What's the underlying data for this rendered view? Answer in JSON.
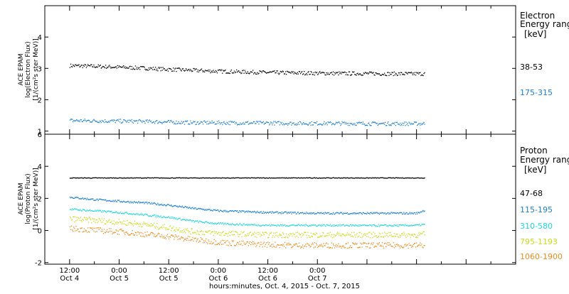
{
  "chart_data": [
    {
      "type": "scatter",
      "panel": "electron",
      "ylabel_lines": [
        "ACE EPAM",
        "log(Electron Flux)",
        "[1/(cm²s ster MeV)]"
      ],
      "ylim": [
        0.9,
        5.0
      ],
      "y_ticks": [
        1,
        2,
        3,
        4
      ],
      "legend_title_lines": [
        "Electron",
        "Energy ranges",
        "[keV]"
      ],
      "series": [
        {
          "name": "38-53",
          "color": "#000000",
          "x": [
            0,
            6,
            12,
            18,
            24,
            30,
            36,
            42,
            48,
            54,
            60,
            66,
            72,
            78,
            84,
            86
          ],
          "y": [
            3.1,
            3.08,
            3.05,
            3.02,
            2.98,
            2.95,
            2.92,
            2.9,
            2.88,
            2.87,
            2.86,
            2.85,
            2.85,
            2.84,
            2.84,
            2.84
          ]
        },
        {
          "name": "175-315",
          "color": "#1a7fd6",
          "x": [
            0,
            6,
            12,
            18,
            24,
            30,
            36,
            42,
            48,
            54,
            60,
            66,
            72,
            78,
            84,
            86
          ],
          "y": [
            1.35,
            1.34,
            1.33,
            1.32,
            1.3,
            1.28,
            1.28,
            1.27,
            1.27,
            1.26,
            1.26,
            1.26,
            1.25,
            1.25,
            1.25,
            1.25
          ]
        }
      ]
    },
    {
      "type": "scatter",
      "panel": "proton",
      "ylabel_lines": [
        "ACE EPAM",
        "log(Proton Flux)",
        "[1/(cm²s ster MeV)]"
      ],
      "ylim": [
        -2.1,
        6.0
      ],
      "y_ticks": [
        -2,
        0,
        2,
        4,
        6
      ],
      "legend_title_lines": [
        "Proton",
        "Energy ranges",
        "[keV]"
      ],
      "series": [
        {
          "name": "47-68",
          "color": "#000000",
          "x": [
            0,
            12,
            24,
            36,
            48,
            60,
            72,
            86
          ],
          "y": [
            3.3,
            3.3,
            3.3,
            3.3,
            3.3,
            3.3,
            3.3,
            3.3
          ]
        },
        {
          "name": "115-195",
          "color": "#1a7fd6",
          "x": [
            0,
            6,
            12,
            18,
            24,
            30,
            36,
            42,
            48,
            54,
            60,
            66,
            72,
            78,
            84,
            86
          ],
          "y": [
            2.1,
            1.95,
            1.85,
            1.75,
            1.6,
            1.4,
            1.25,
            1.2,
            1.15,
            1.12,
            1.1,
            1.1,
            1.1,
            1.1,
            1.1,
            1.3
          ]
        },
        {
          "name": "310-580",
          "color": "#22d8d8",
          "x": [
            0,
            6,
            12,
            18,
            24,
            30,
            36,
            42,
            48,
            54,
            60,
            66,
            72,
            78,
            84,
            86
          ],
          "y": [
            1.35,
            1.25,
            1.15,
            1.0,
            0.85,
            0.6,
            0.45,
            0.4,
            0.35,
            0.35,
            0.35,
            0.35,
            0.33,
            0.33,
            0.35,
            0.4
          ]
        },
        {
          "name": "795-1193",
          "color": "#c8dd1a",
          "x": [
            0,
            6,
            12,
            18,
            24,
            30,
            36,
            42,
            48,
            54,
            60,
            66,
            72,
            78,
            84,
            86
          ],
          "y": [
            0.75,
            0.65,
            0.55,
            0.4,
            0.2,
            -0.05,
            -0.15,
            -0.2,
            -0.25,
            -0.25,
            -0.25,
            -0.25,
            -0.25,
            -0.25,
            -0.25,
            -0.2
          ]
        },
        {
          "name": "1060-1900",
          "color": "#f08a1c",
          "x": [
            0,
            6,
            12,
            18,
            24,
            30,
            36,
            42,
            48,
            54,
            60,
            66,
            72,
            78,
            84,
            86
          ],
          "y": [
            0.15,
            0.05,
            -0.05,
            -0.2,
            -0.35,
            -0.55,
            -0.7,
            -0.8,
            -0.85,
            -0.9,
            -0.9,
            -0.9,
            -0.9,
            -0.9,
            -0.9,
            -0.9
          ]
        }
      ]
    }
  ],
  "x_axis": {
    "tick_labels": [
      {
        "time": "12:00",
        "day": "Oct 4"
      },
      {
        "time": "0:00",
        "day": "Oct 5"
      },
      {
        "time": "12:00",
        "day": "Oct 5"
      },
      {
        "time": "0:00",
        "day": "Oct 6"
      },
      {
        "time": "12:00",
        "day": "Oct 6"
      },
      {
        "time": "0:00",
        "day": "Oct 7"
      }
    ],
    "xlabel": "hours:minutes, Oct.  4, 2015 - Oct.  7, 2015"
  }
}
